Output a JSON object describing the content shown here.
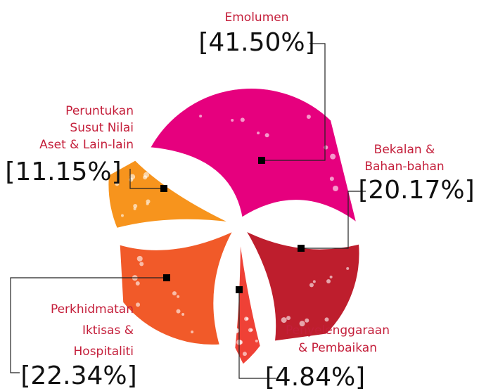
{
  "chart_data": {
    "type": "pie",
    "categories": [
      [
        "Emolumen"
      ],
      [
        "Bekalan &",
        "Bahan-bahan"
      ],
      [
        "Penyelenggaraan",
        "& Pembaikan"
      ],
      [
        "Perkhidmatan",
        "Iktisas &",
        "Hospitaliti"
      ],
      [
        "Peruntukan",
        "Susut Nilai",
        "Aset & Lain-lain"
      ]
    ],
    "values": [
      41.5,
      20.17,
      4.84,
      22.34,
      11.15
    ],
    "value_labels": [
      "[41.50%]",
      "[20.17%]",
      "[4.84%]",
      "[22.34%]",
      "[11.15%]"
    ],
    "colors": [
      "#e6007e",
      "#be1e2d",
      "#ef4136",
      "#f15a29",
      "#f7941d"
    ]
  }
}
